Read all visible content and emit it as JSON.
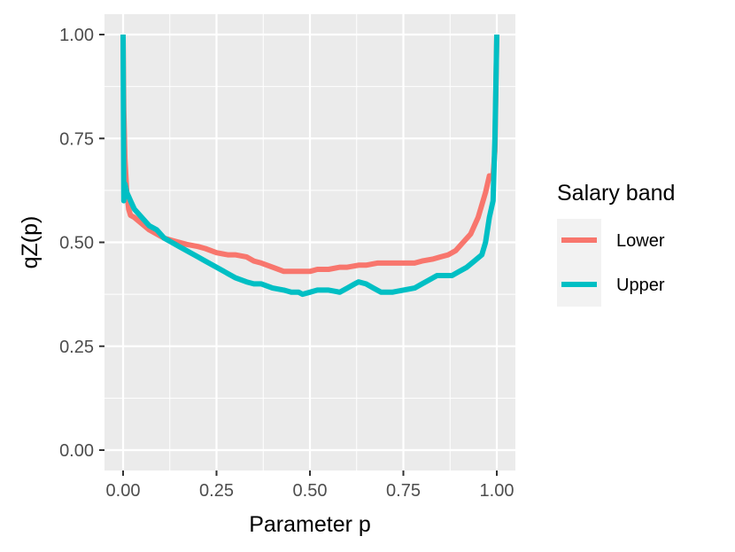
{
  "chart_data": {
    "type": "line",
    "xlabel": "Parameter p",
    "ylabel": "qZ(p)",
    "xlim": [
      0,
      1
    ],
    "ylim": [
      0,
      1
    ],
    "x_ticks": [
      "0.00",
      "0.25",
      "0.50",
      "0.75",
      "1.00"
    ],
    "y_ticks": [
      "0.00",
      "0.25",
      "0.50",
      "0.75",
      "1.00"
    ],
    "grid": true,
    "legend": {
      "title": "Salary band",
      "position": "right"
    },
    "series": [
      {
        "name": "Lower",
        "color": "#F8766D",
        "points": [
          [
            0,
            1.0
          ],
          [
            0.002,
            0.82
          ],
          [
            0.005,
            0.7
          ],
          [
            0.01,
            0.62
          ],
          [
            0.015,
            0.58
          ],
          [
            0.02,
            0.565
          ],
          [
            0.03,
            0.56
          ],
          [
            0.05,
            0.545
          ],
          [
            0.07,
            0.53
          ],
          [
            0.09,
            0.52
          ],
          [
            0.11,
            0.51
          ],
          [
            0.13,
            0.505
          ],
          [
            0.15,
            0.5
          ],
          [
            0.17,
            0.495
          ],
          [
            0.2,
            0.49
          ],
          [
            0.22,
            0.485
          ],
          [
            0.25,
            0.475
          ],
          [
            0.28,
            0.47
          ],
          [
            0.3,
            0.47
          ],
          [
            0.33,
            0.465
          ],
          [
            0.35,
            0.455
          ],
          [
            0.37,
            0.45
          ],
          [
            0.4,
            0.44
          ],
          [
            0.43,
            0.43
          ],
          [
            0.45,
            0.43
          ],
          [
            0.47,
            0.43
          ],
          [
            0.5,
            0.43
          ],
          [
            0.52,
            0.435
          ],
          [
            0.55,
            0.435
          ],
          [
            0.58,
            0.44
          ],
          [
            0.6,
            0.44
          ],
          [
            0.63,
            0.445
          ],
          [
            0.65,
            0.445
          ],
          [
            0.68,
            0.45
          ],
          [
            0.7,
            0.45
          ],
          [
            0.73,
            0.45
          ],
          [
            0.75,
            0.45
          ],
          [
            0.78,
            0.45
          ],
          [
            0.8,
            0.455
          ],
          [
            0.83,
            0.46
          ],
          [
            0.85,
            0.465
          ],
          [
            0.87,
            0.47
          ],
          [
            0.89,
            0.48
          ],
          [
            0.91,
            0.5
          ],
          [
            0.93,
            0.52
          ],
          [
            0.95,
            0.56
          ],
          [
            0.97,
            0.62
          ],
          [
            0.98,
            0.66
          ],
          [
            0.99,
            0.66
          ],
          [
            0.995,
            0.72
          ],
          [
            1.0,
            1.0
          ]
        ]
      },
      {
        "name": "Upper",
        "color": "#00BFC4",
        "points": [
          [
            0,
            1.0
          ],
          [
            0.002,
            0.6
          ],
          [
            0.005,
            0.64
          ],
          [
            0.01,
            0.62
          ],
          [
            0.015,
            0.61
          ],
          [
            0.02,
            0.6
          ],
          [
            0.03,
            0.58
          ],
          [
            0.05,
            0.56
          ],
          [
            0.07,
            0.54
          ],
          [
            0.09,
            0.53
          ],
          [
            0.11,
            0.51
          ],
          [
            0.13,
            0.5
          ],
          [
            0.15,
            0.49
          ],
          [
            0.17,
            0.48
          ],
          [
            0.2,
            0.465
          ],
          [
            0.22,
            0.455
          ],
          [
            0.25,
            0.44
          ],
          [
            0.28,
            0.425
          ],
          [
            0.3,
            0.415
          ],
          [
            0.33,
            0.405
          ],
          [
            0.35,
            0.4
          ],
          [
            0.37,
            0.4
          ],
          [
            0.4,
            0.39
          ],
          [
            0.43,
            0.385
          ],
          [
            0.45,
            0.38
          ],
          [
            0.47,
            0.38
          ],
          [
            0.48,
            0.375
          ],
          [
            0.5,
            0.38
          ],
          [
            0.52,
            0.385
          ],
          [
            0.55,
            0.385
          ],
          [
            0.58,
            0.38
          ],
          [
            0.6,
            0.39
          ],
          [
            0.62,
            0.4
          ],
          [
            0.63,
            0.405
          ],
          [
            0.65,
            0.4
          ],
          [
            0.67,
            0.39
          ],
          [
            0.69,
            0.38
          ],
          [
            0.7,
            0.38
          ],
          [
            0.72,
            0.38
          ],
          [
            0.75,
            0.385
          ],
          [
            0.78,
            0.39
          ],
          [
            0.8,
            0.4
          ],
          [
            0.82,
            0.41
          ],
          [
            0.84,
            0.42
          ],
          [
            0.86,
            0.42
          ],
          [
            0.88,
            0.42
          ],
          [
            0.9,
            0.43
          ],
          [
            0.92,
            0.44
          ],
          [
            0.94,
            0.455
          ],
          [
            0.96,
            0.47
          ],
          [
            0.97,
            0.5
          ],
          [
            0.98,
            0.56
          ],
          [
            0.99,
            0.6
          ],
          [
            0.995,
            0.75
          ],
          [
            1.0,
            1.0
          ]
        ]
      }
    ]
  }
}
